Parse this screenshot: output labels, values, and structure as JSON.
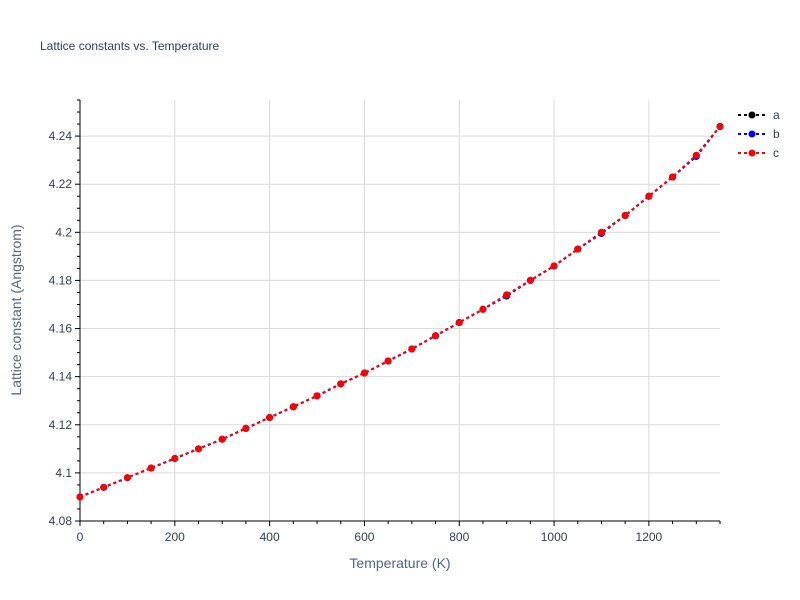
{
  "chart_data": {
    "type": "line",
    "title": "Lattice constants vs. Temperature",
    "xlabel": "Temperature (K)",
    "ylabel": "Lattice constant (Angstrom)",
    "xlim": [
      0,
      1350
    ],
    "ylim": [
      4.08,
      4.255
    ],
    "xticks": [
      0,
      200,
      400,
      600,
      800,
      1000,
      1200
    ],
    "yticks": [
      4.08,
      4.1,
      4.12,
      4.14,
      4.16,
      4.18,
      4.2,
      4.22,
      4.24
    ],
    "ytick_labels": [
      "4.08",
      "4.1",
      "4.12",
      "4.14",
      "4.16",
      "4.18",
      "4.2",
      "4.22",
      "4.24"
    ],
    "grid": true,
    "legend_position": "top-right",
    "x": [
      0,
      50,
      100,
      150,
      200,
      250,
      300,
      350,
      400,
      450,
      500,
      550,
      600,
      650,
      700,
      750,
      800,
      850,
      900,
      950,
      1000,
      1050,
      1100,
      1150,
      1200,
      1250,
      1300,
      1350
    ],
    "series": [
      {
        "name": "a",
        "color": "#000000",
        "values": [
          4.09,
          4.094,
          4.098,
          4.102,
          4.106,
          4.11,
          4.114,
          4.1185,
          4.123,
          4.1275,
          4.132,
          4.137,
          4.1415,
          4.1465,
          4.1515,
          4.157,
          4.1625,
          4.168,
          4.174,
          4.18,
          4.186,
          4.193,
          4.2,
          4.207,
          4.215,
          4.223,
          4.232,
          4.244
        ]
      },
      {
        "name": "b",
        "color": "#0000ff",
        "values": [
          4.09,
          4.094,
          4.098,
          4.102,
          4.106,
          4.11,
          4.114,
          4.1185,
          4.123,
          4.1275,
          4.132,
          4.137,
          4.1415,
          4.1465,
          4.1515,
          4.157,
          4.1625,
          4.168,
          4.1735,
          4.18,
          4.186,
          4.193,
          4.1995,
          4.207,
          4.215,
          4.223,
          4.2315,
          4.244
        ]
      },
      {
        "name": "c",
        "color": "#ff0000",
        "values": [
          4.09,
          4.094,
          4.098,
          4.102,
          4.106,
          4.11,
          4.114,
          4.1185,
          4.123,
          4.1275,
          4.132,
          4.137,
          4.1415,
          4.1465,
          4.1515,
          4.157,
          4.1625,
          4.168,
          4.174,
          4.18,
          4.186,
          4.193,
          4.2,
          4.207,
          4.215,
          4.223,
          4.232,
          4.244
        ]
      }
    ]
  },
  "colors": {
    "background": "#ffffff",
    "grid": "#d9d9d9",
    "axis": "#000000",
    "text": "#2a3f5f",
    "axis_title": "#506784"
  }
}
